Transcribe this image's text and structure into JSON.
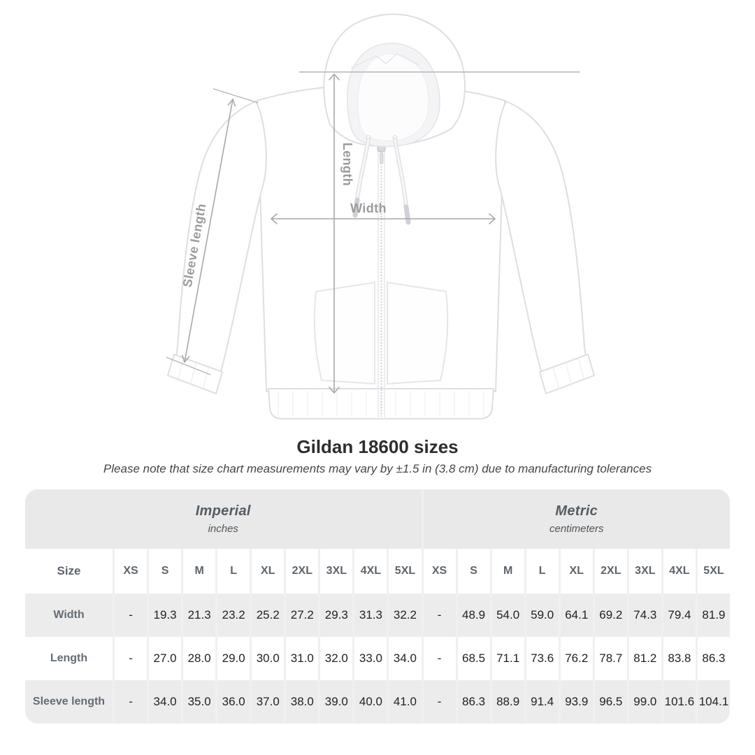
{
  "figure": {
    "annotations": {
      "length_label": "Length",
      "width_label": "Width",
      "sleeve_label": "Sleeve length"
    },
    "arrow_color": "#a8a8a8",
    "label_color": "#9b9b9b"
  },
  "heading": {
    "title": "Gildan 18600 sizes",
    "subtitle": "Please note that size chart measurements may vary by ±1.5 in (3.8 cm) due to manufacturing tolerances"
  },
  "chart_data": {
    "type": "table",
    "title": "Gildan 18600 sizes",
    "unit_groups": [
      {
        "label": "Imperial",
        "sublabel": "inches"
      },
      {
        "label": "Metric",
        "sublabel": "centimeters"
      }
    ],
    "size_header": "Size",
    "sizes": [
      "XS",
      "S",
      "M",
      "L",
      "XL",
      "2XL",
      "3XL",
      "4XL",
      "5XL"
    ],
    "rows": [
      {
        "label": "Width",
        "imperial": [
          "-",
          "19.3",
          "21.3",
          "23.2",
          "25.2",
          "27.2",
          "29.3",
          "31.3",
          "32.2"
        ],
        "metric": [
          "-",
          "48.9",
          "54.0",
          "59.0",
          "64.1",
          "69.2",
          "74.3",
          "79.4",
          "81.9"
        ]
      },
      {
        "label": "Length",
        "imperial": [
          "-",
          "27.0",
          "28.0",
          "29.0",
          "30.0",
          "31.0",
          "32.0",
          "33.0",
          "34.0"
        ],
        "metric": [
          "-",
          "68.5",
          "71.1",
          "73.6",
          "76.2",
          "78.7",
          "81.2",
          "83.8",
          "86.3"
        ]
      },
      {
        "label": "Sleeve length",
        "imperial": [
          "-",
          "34.0",
          "35.0",
          "36.0",
          "37.0",
          "38.0",
          "39.0",
          "40.0",
          "41.0"
        ],
        "metric": [
          "-",
          "86.3",
          "88.9",
          "91.4",
          "93.9",
          "96.5",
          "99.0",
          "101.6",
          "104.1"
        ]
      }
    ]
  },
  "colors": {
    "band_bg": "#e9e9e9",
    "row_bg": "#ffffff",
    "row_alt_bg": "#ececec",
    "grid_gap": "#f0f0f0",
    "header_text": "#5d646b",
    "number_text": "#222222",
    "title_text": "#2e2e2e",
    "annotation": "#9b9b9b"
  }
}
